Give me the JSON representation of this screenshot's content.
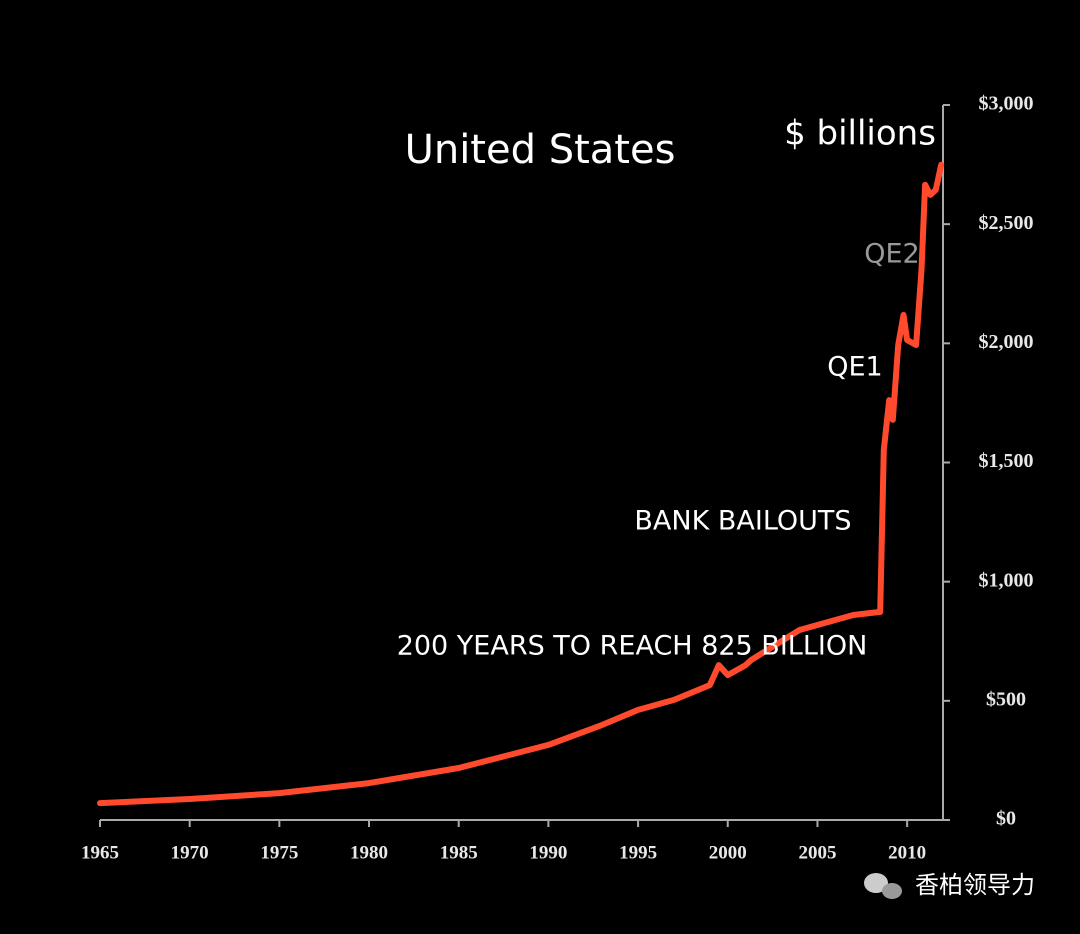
{
  "chart_data": {
    "type": "line",
    "title": "United States",
    "y_axis_label": "$ billions",
    "annotations": [
      "QE2",
      "QE1",
      "BANK BAILOUTS",
      "200 YEARS TO REACH 825 BILLION"
    ],
    "watermark": "香柏领导力",
    "x": [
      1965,
      1970,
      1975,
      1980,
      1985,
      1990,
      1993,
      1995,
      1997,
      1999,
      1999.5,
      2000,
      2001,
      2001.3,
      2004,
      2005,
      2007,
      2008.5,
      2008.7,
      2009,
      2009.2,
      2009.5,
      2009.8,
      2010,
      2010.5,
      2010.8,
      2011,
      2011.3,
      2011.6,
      2011.9
    ],
    "series": [
      {
        "name": "United States",
        "color": "#ff4a2e",
        "values": [
          71,
          88,
          113,
          155,
          218,
          315,
          399,
          462,
          504,
          566,
          650,
          608,
          650,
          671,
          797,
          818,
          860,
          873,
          1553,
          1762,
          1679,
          1993,
          2119,
          2014,
          1993,
          2308,
          2665,
          2623,
          2644,
          2749
        ]
      }
    ],
    "xlim": [
      1965,
      2012
    ],
    "xticks": [
      1965,
      1970,
      1975,
      1980,
      1985,
      1990,
      1995,
      2000,
      2005,
      2010
    ],
    "ylim": [
      0,
      3000
    ],
    "yticks": [
      {
        "value": 0,
        "label": "$0"
      },
      {
        "value": 500,
        "label": "$500"
      },
      {
        "value": 1000,
        "label": "$1,000"
      },
      {
        "value": 1500,
        "label": "$1,500"
      },
      {
        "value": 2000,
        "label": "$2,000"
      },
      {
        "value": 2500,
        "label": "$2,500"
      },
      {
        "value": 3000,
        "label": "$3,000"
      }
    ],
    "grid": false
  }
}
